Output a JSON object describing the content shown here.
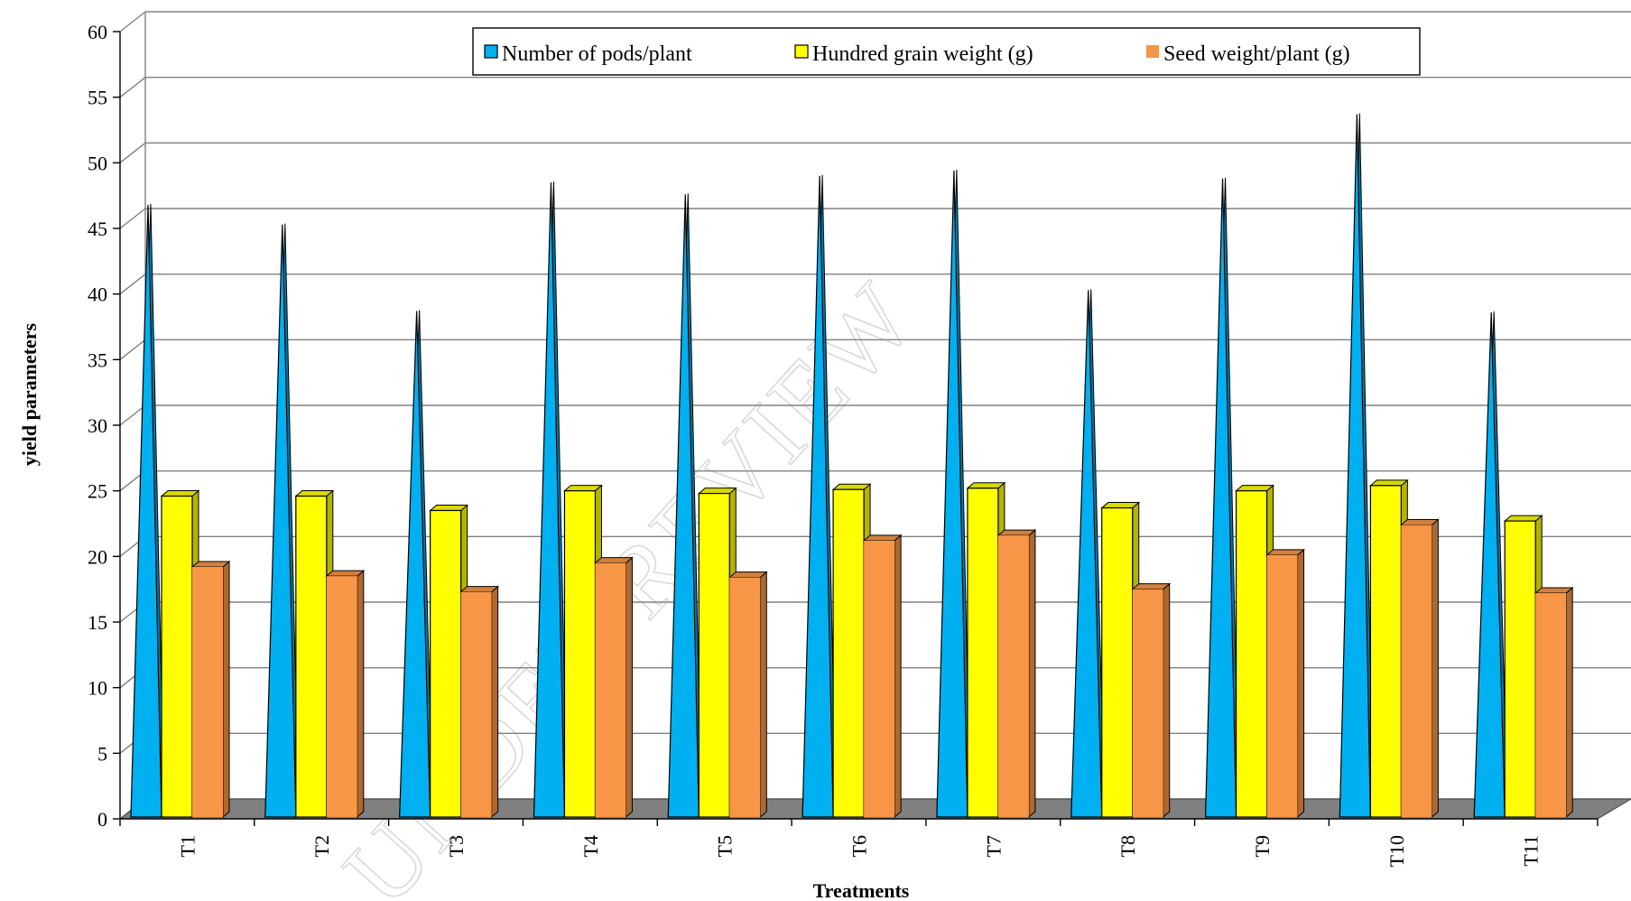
{
  "chart_data": {
    "type": "bar",
    "style": "3d-column",
    "title": "",
    "xlabel": "Treatments",
    "ylabel": "yield parameters",
    "ylim": [
      0,
      60
    ],
    "yticks": [
      0,
      5,
      10,
      15,
      20,
      25,
      30,
      35,
      40,
      45,
      50,
      55,
      60
    ],
    "grid": true,
    "legend_position": "top-right",
    "categories": [
      "T1",
      "T2",
      "T3",
      "T4",
      "T5",
      "T6",
      "T7",
      "T8",
      "T9",
      "T10",
      "T11"
    ],
    "series": [
      {
        "name": "Number of pods/plant",
        "color": "#00B0F0",
        "values": [
          46.8,
          45.3,
          38.7,
          48.5,
          47.6,
          49.0,
          49.4,
          40.3,
          48.8,
          53.7,
          38.6
        ]
      },
      {
        "name": "Hundred grain weight (g)",
        "color": "#FFFF00",
        "values": [
          24.6,
          24.6,
          23.5,
          25.0,
          24.8,
          25.1,
          25.2,
          23.7,
          25.0,
          25.4,
          22.7
        ]
      },
      {
        "name": "Seed weight/plant (g)",
        "color": "#F79646",
        "values": [
          19.2,
          18.5,
          17.3,
          19.5,
          18.4,
          21.2,
          21.6,
          17.5,
          20.1,
          22.4,
          17.2
        ]
      }
    ]
  },
  "watermark": {
    "text": "UNDER REVIEW"
  }
}
